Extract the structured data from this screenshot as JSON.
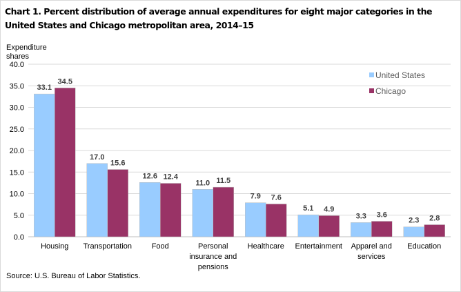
{
  "chart_data": {
    "type": "bar",
    "title": "Chart 1. Percent distribution of average annual expenditures for eight major categories in the United States and Chicago metropolitan area, 2014–15",
    "ylabel": "Expenditure shares",
    "xlabel": "",
    "ylim": [
      0,
      40
    ],
    "yticks": [
      "0.0",
      "5.0",
      "10.0",
      "15.0",
      "20.0",
      "25.0",
      "30.0",
      "35.0",
      "40.0"
    ],
    "grid": true,
    "legend_position": "top-right",
    "categories": [
      [
        "Housing"
      ],
      [
        "Transportation"
      ],
      [
        "Food"
      ],
      [
        "Personal",
        "insurance and",
        "pensions"
      ],
      [
        "Healthcare"
      ],
      [
        "Entertainment"
      ],
      [
        "Apparel and",
        "services"
      ],
      [
        "Education"
      ]
    ],
    "series": [
      {
        "name": "United States",
        "color": "#99CCFF",
        "values": [
          33.1,
          17.0,
          12.6,
          11.0,
          7.9,
          5.1,
          3.3,
          2.3
        ],
        "labels": [
          "33.1",
          "17.0",
          "12.6",
          "11.0",
          "7.9",
          "5.1",
          "3.3",
          "2.3"
        ]
      },
      {
        "name": "Chicago",
        "color": "#993366",
        "values": [
          34.5,
          15.6,
          12.4,
          11.5,
          7.6,
          4.9,
          3.6,
          2.8
        ],
        "labels": [
          "34.5",
          "15.6",
          "12.4",
          "11.5",
          "7.6",
          "4.9",
          "3.6",
          "2.8"
        ]
      }
    ],
    "source": "Source: U.S. Bureau of Labor Statistics."
  }
}
